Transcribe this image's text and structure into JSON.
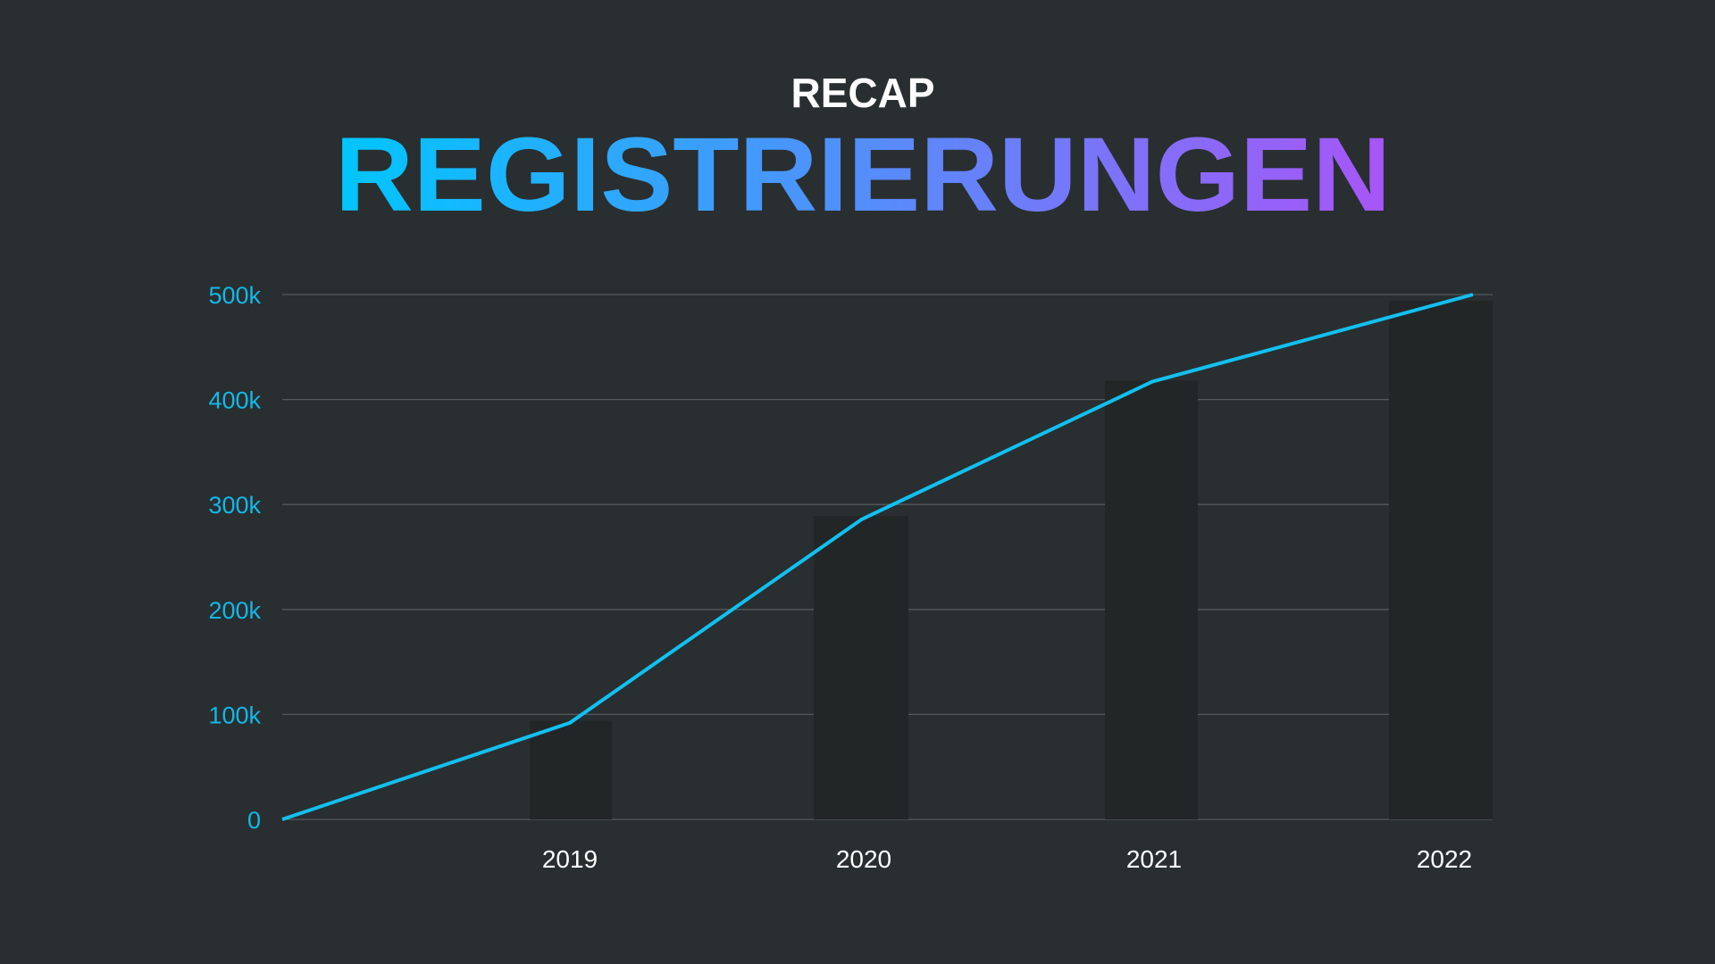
{
  "header": {
    "kicker": "RECAP",
    "title": "REGISTRIERUNGEN"
  },
  "colors": {
    "background": "#292e30",
    "line": "#12c0f0",
    "bar": "#222627",
    "grid": "#565a5c",
    "tick": "#12b8e8",
    "gradient_start": "#00c6ff",
    "gradient_end": "#a855f7"
  },
  "chart_data": {
    "type": "bar+line",
    "title": "REGISTRIERUNGEN",
    "categories": [
      "2019",
      "2020",
      "2021",
      "2022"
    ],
    "series": [
      {
        "name": "bars",
        "type": "bar",
        "values": [
          94000,
          289000,
          418000,
          494000
        ]
      },
      {
        "name": "line",
        "type": "line",
        "x": [
          "start",
          "2019",
          "2020",
          "2021",
          "2022"
        ],
        "values": [
          0,
          92000,
          286000,
          417000,
          500000
        ]
      }
    ],
    "yticks": [
      "0",
      "100k",
      "200k",
      "300k",
      "400k",
      "500k"
    ],
    "ylim": [
      0,
      500000
    ],
    "grid": true,
    "xlabel": "",
    "ylabel": ""
  }
}
